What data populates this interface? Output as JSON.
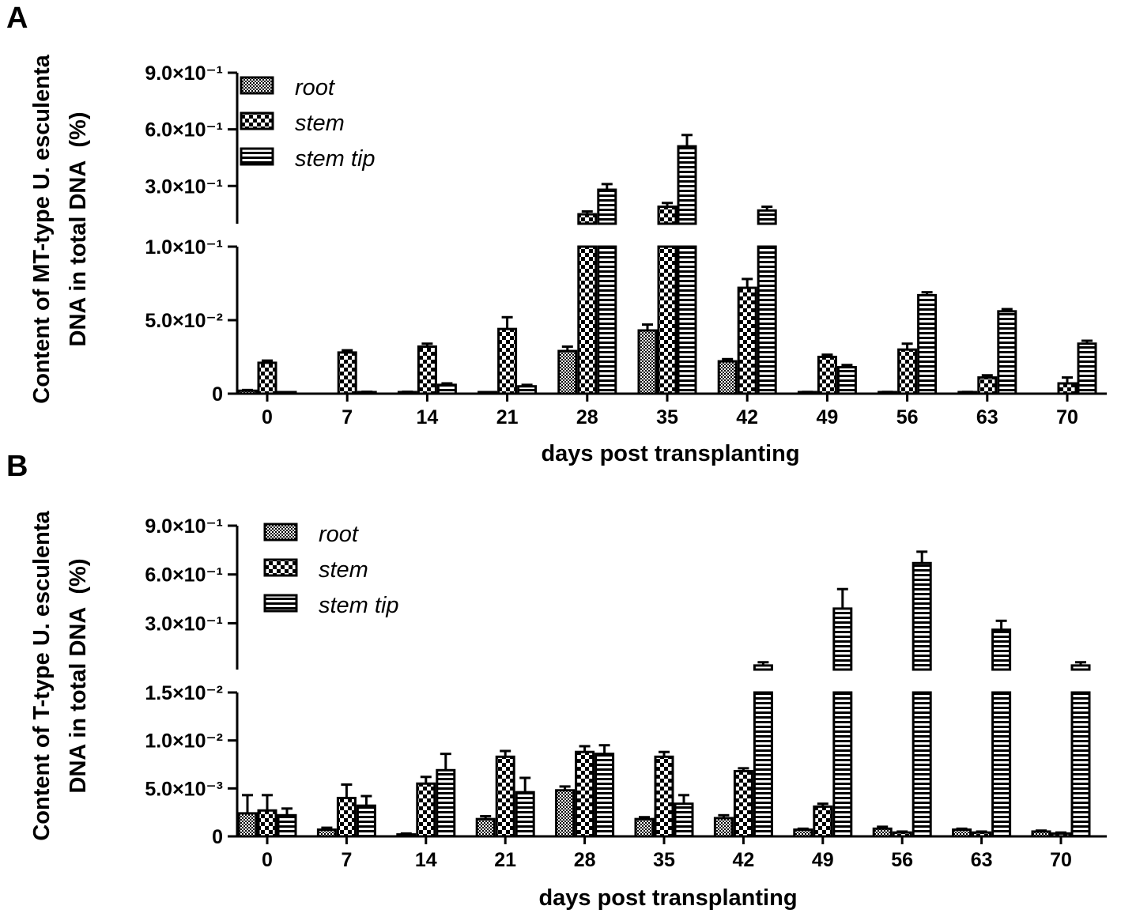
{
  "chart_data": [
    {
      "panel": "A",
      "type": "bar",
      "axis_break": true,
      "ylabel_line1": "Content of MT-type U. esculenta",
      "ylabel_line2": "DNA in total DNA  (%)",
      "xlabel": "days post transplanting",
      "categories": [
        "0",
        "7",
        "14",
        "21",
        "28",
        "35",
        "42",
        "49",
        "56",
        "63",
        "70"
      ],
      "lower_segment": {
        "ylim": [
          0,
          0.1
        ],
        "ticks": [
          0,
          0.05,
          0.1
        ],
        "tick_labels": [
          "0",
          "5.0×10⁻²",
          "1.0×10⁻¹"
        ]
      },
      "upper_segment": {
        "ylim": [
          0.1,
          0.9
        ],
        "ticks": [
          0.3,
          0.6,
          0.9
        ],
        "tick_labels": [
          "3.0×10⁻¹",
          "6.0×10⁻¹",
          "9.0×10⁻¹"
        ]
      },
      "legend": [
        "root",
        "stem",
        "stem tip"
      ],
      "series": [
        {
          "name": "root",
          "pattern": "fine",
          "values": [
            0.002,
            0,
            0.001,
            0.0005,
            0.029,
            0.043,
            0.022,
            0.001,
            0.001,
            0.001,
            0
          ],
          "errors": [
            0.0005,
            0,
            0.0003,
            0.0002,
            0.003,
            0.004,
            0.0015,
            0.0002,
            0.0002,
            0.0002,
            0
          ]
        },
        {
          "name": "stem",
          "pattern": "checker",
          "values": [
            0.021,
            0.028,
            0.032,
            0.044,
            0.15,
            0.19,
            0.072,
            0.025,
            0.03,
            0.011,
            0.007
          ],
          "errors": [
            0.0015,
            0.0015,
            0.002,
            0.008,
            0.015,
            0.02,
            0.006,
            0.0015,
            0.004,
            0.0015,
            0.004
          ]
        },
        {
          "name": "stem tip",
          "pattern": "stripes",
          "values": [
            0.0005,
            0.001,
            0.006,
            0.005,
            0.28,
            0.51,
            0.17,
            0.018,
            0.067,
            0.056,
            0.034
          ],
          "errors": [
            0.0002,
            0.0003,
            0.001,
            0.001,
            0.03,
            0.06,
            0.02,
            0.0015,
            0.002,
            0.0015,
            0.002
          ]
        }
      ]
    },
    {
      "panel": "B",
      "type": "bar",
      "axis_break": true,
      "ylabel_line1": "Content of T-type U. esculenta",
      "ylabel_line2": "DNA in total DNA  (%)",
      "xlabel": "days post transplanting",
      "categories": [
        "0",
        "7",
        "14",
        "21",
        "28",
        "35",
        "42",
        "49",
        "56",
        "63",
        "70"
      ],
      "lower_segment": {
        "ylim": [
          0,
          0.015
        ],
        "ticks": [
          0,
          0.005,
          0.01,
          0.015
        ],
        "tick_labels": [
          "0",
          "5.0×10⁻³",
          "1.0×10⁻²",
          "1.5×10⁻²"
        ]
      },
      "upper_segment": {
        "ylim": [
          0.015,
          0.9
        ],
        "ticks": [
          0.3,
          0.6,
          0.9
        ],
        "tick_labels": [
          "3.0×10⁻¹",
          "6.0×10⁻¹",
          "9.0×10⁻¹"
        ]
      },
      "legend": [
        "root",
        "stem",
        "stem tip"
      ],
      "series": [
        {
          "name": "root",
          "pattern": "fine",
          "values": [
            0.0024,
            0.0007,
            0.0002,
            0.0018,
            0.0048,
            0.0018,
            0.0019,
            0.0007,
            0.0008,
            0.0007,
            0.0005
          ],
          "errors": [
            0.0019,
            0.0002,
            0.0001,
            0.0003,
            0.0004,
            0.0002,
            0.0003,
            0.0001,
            0.0002,
            0.0001,
            0.0001
          ]
        },
        {
          "name": "stem",
          "pattern": "checker",
          "values": [
            0.0027,
            0.004,
            0.0055,
            0.0083,
            0.0088,
            0.0083,
            0.0068,
            0.0031,
            0.0004,
            0.0004,
            0.0003
          ],
          "errors": [
            0.0016,
            0.0014,
            0.0007,
            0.0006,
            0.0006,
            0.0005,
            0.0003,
            0.0003,
            0.0001,
            0.0001,
            0.0001
          ]
        },
        {
          "name": "stem tip",
          "pattern": "stripes",
          "values": [
            0.0022,
            0.0032,
            0.0069,
            0.0046,
            0.0086,
            0.0034,
            0.04,
            0.39,
            0.67,
            0.26,
            0.04
          ],
          "errors": [
            0.0007,
            0.001,
            0.0017,
            0.0015,
            0.0009,
            0.0009,
            0.02,
            0.12,
            0.07,
            0.055,
            0.02
          ]
        }
      ]
    }
  ]
}
